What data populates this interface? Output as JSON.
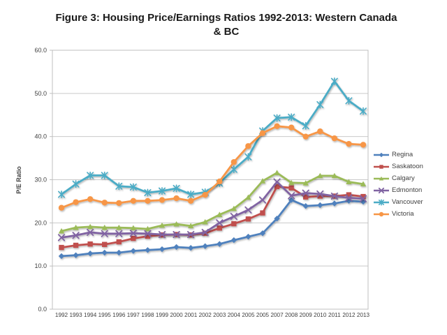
{
  "chart_data": {
    "type": "line",
    "title": "Figure 3: Housing Price/Earnings Ratios 1992-2013: Western Canada & BC",
    "xlabel": "",
    "ylabel": "P/E Ratio",
    "ylim": [
      0,
      60
    ],
    "ytick_labels": [
      "0.0",
      "10.0",
      "20.0",
      "30.0",
      "40.0",
      "50.0",
      "60.0"
    ],
    "grid": true,
    "legend_position": "right",
    "categories": [
      "1992",
      "1993",
      "1994",
      "1995",
      "1996",
      "1997",
      "1998",
      "1999",
      "2000",
      "2001",
      "2002",
      "2003",
      "2004",
      "2005",
      "2005",
      "2007",
      "2008",
      "2009",
      "2010",
      "2011",
      "2012",
      "2013"
    ],
    "series": [
      {
        "name": "Regina",
        "color": "#4F81BD",
        "marker": "diamond",
        "values": [
          12.3,
          12.5,
          12.9,
          13.1,
          13.1,
          13.5,
          13.7,
          13.9,
          14.4,
          14.2,
          14.6,
          15.1,
          16.0,
          16.8,
          17.6,
          21.0,
          25.3,
          23.9,
          24.1,
          24.5,
          25.1,
          24.9
        ]
      },
      {
        "name": "Saskatoon",
        "color": "#C0504D",
        "marker": "square",
        "values": [
          14.3,
          14.8,
          15.1,
          15.0,
          15.6,
          16.4,
          16.9,
          17.2,
          17.3,
          17.2,
          17.6,
          18.8,
          19.8,
          20.9,
          22.3,
          28.4,
          28.1,
          26.0,
          26.2,
          26.2,
          26.5,
          26.1
        ]
      },
      {
        "name": "Calgary",
        "color": "#9BBB59",
        "marker": "triangle",
        "values": [
          18.1,
          18.9,
          19.1,
          18.9,
          18.9,
          18.8,
          18.6,
          19.4,
          19.7,
          19.3,
          20.2,
          21.9,
          23.3,
          25.9,
          29.7,
          31.6,
          29.3,
          29.2,
          30.9,
          30.9,
          29.5,
          29.0
        ]
      },
      {
        "name": "Edmonton",
        "color": "#8064A2",
        "marker": "x",
        "values": [
          16.6,
          17.1,
          17.8,
          17.5,
          17.5,
          17.6,
          17.5,
          17.3,
          17.3,
          17.3,
          17.8,
          20.0,
          21.5,
          23.0,
          25.3,
          29.5,
          26.3,
          26.9,
          26.7,
          26.2,
          25.8,
          25.6
        ]
      },
      {
        "name": "Vancouver",
        "color": "#4BACC6",
        "marker": "asterisk",
        "values": [
          26.6,
          29.0,
          31.0,
          31.0,
          28.5,
          28.3,
          27.0,
          27.4,
          28.0,
          26.6,
          27.1,
          29.2,
          32.4,
          35.3,
          41.3,
          44.3,
          44.5,
          42.5,
          47.4,
          52.8,
          48.3,
          45.9
        ]
      },
      {
        "name": "Victoria",
        "color": "#F79646",
        "marker": "circle",
        "values": [
          23.5,
          24.8,
          25.5,
          24.7,
          24.6,
          25.1,
          25.1,
          25.3,
          25.7,
          25.1,
          26.5,
          29.6,
          34.1,
          37.8,
          40.8,
          42.4,
          42.1,
          40.0,
          41.2,
          39.6,
          38.3,
          38.1
        ]
      }
    ],
    "colors": {
      "gridline": "#C9C9C9",
      "plot_border": "#BFBFBF",
      "axis_text": "#3F3F3F",
      "title_text": "#1A1A1A"
    }
  }
}
